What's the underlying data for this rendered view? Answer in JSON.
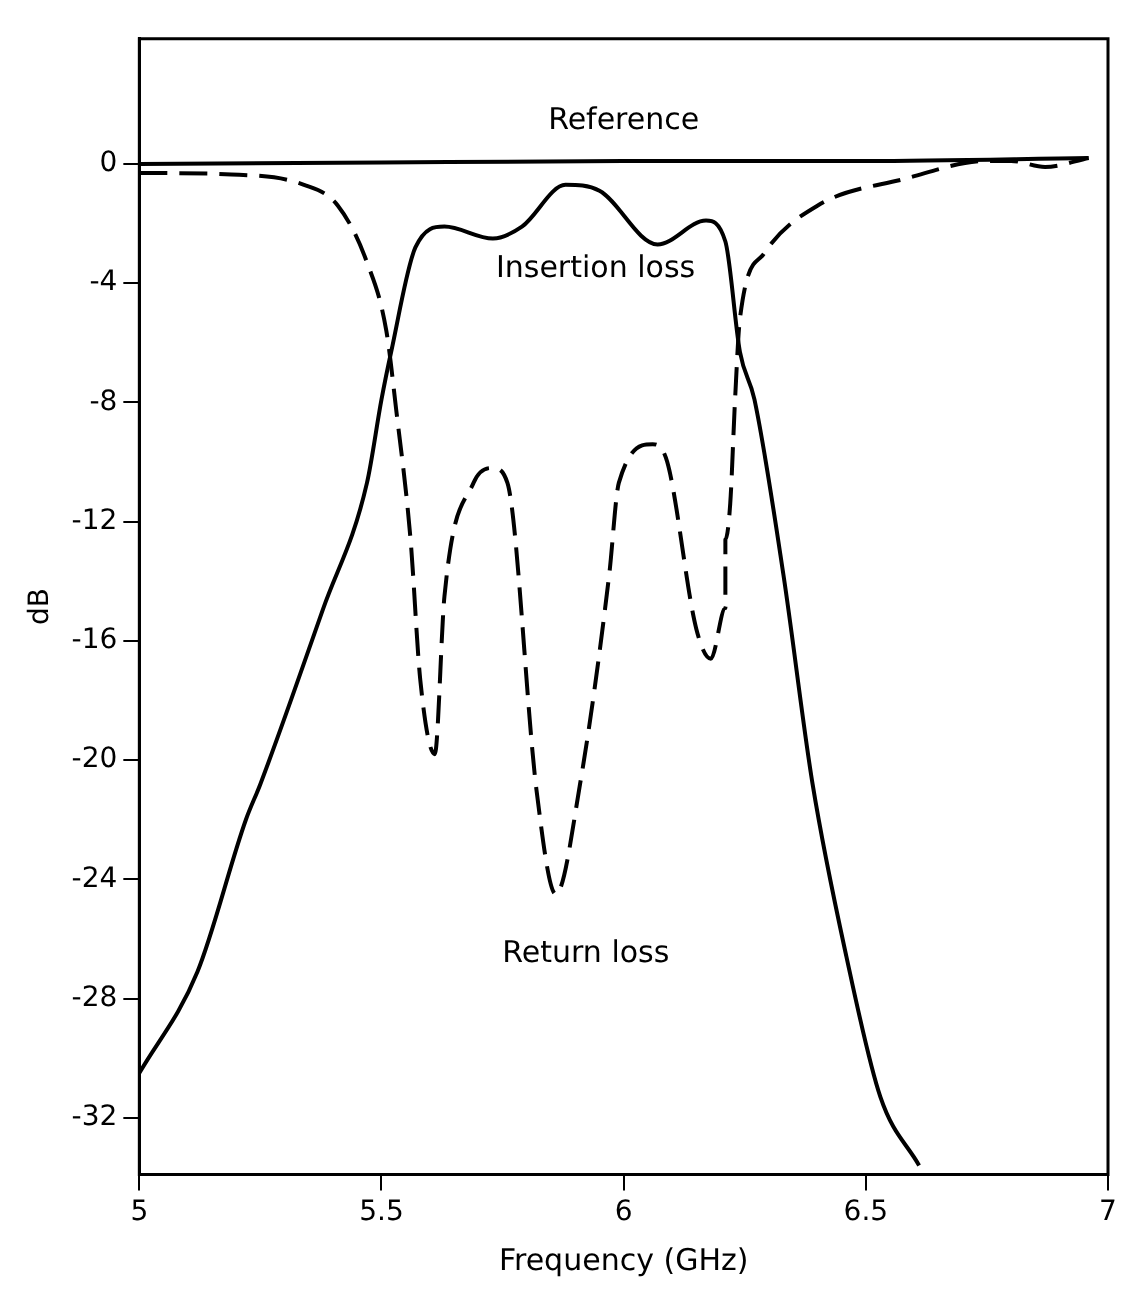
{
  "chart_data": {
    "type": "line",
    "xlabel": "Frequency (GHz)",
    "ylabel": "dB",
    "xlim": [
      5,
      7
    ],
    "xticks": [
      5,
      5.5,
      6,
      6.5,
      7
    ],
    "ylim": [
      -33.9,
      4.2
    ],
    "yticks": [
      0,
      -4,
      -8,
      -12,
      -16,
      -20,
      -24,
      -28,
      -32
    ],
    "grid": false,
    "legend": false,
    "marker": "none",
    "series": [
      {
        "name": "Reference",
        "color": "#000000",
        "line_style": "solid",
        "x": [
          5,
          5.5,
          6,
          6.5,
          6.96
        ],
        "values": [
          0,
          0.05,
          0.1,
          0.1,
          0.2
        ]
      },
      {
        "name": "Insertion loss",
        "color": "#000000",
        "line_style": "solid",
        "x": [
          5,
          5.12,
          5.22,
          5.25,
          5.38,
          5.47,
          5.5,
          5.52,
          5.57,
          5.63,
          5.73,
          5.79,
          5.88,
          5.95,
          6.07,
          6.17,
          6.21,
          6.24,
          6.27,
          6.33,
          6.39,
          6.46,
          6.53,
          6.61
        ],
        "values": [
          -30.5,
          -27.1,
          -22,
          -20.8,
          -14.9,
          -10.7,
          -7.9,
          -6.3,
          -2.8,
          -2.1,
          -2.5,
          -2.1,
          -0.7,
          -0.9,
          -2.7,
          -1.9,
          -2.6,
          -6.3,
          -7.9,
          -13.8,
          -20.8,
          -26.6,
          -31.3,
          -33.6
        ]
      },
      {
        "name": "Return loss",
        "color": "#000000",
        "line_style": "dashed",
        "x": [
          5,
          5.19,
          5.34,
          5.41,
          5.47,
          5.51,
          5.53,
          5.56,
          5.58,
          5.61,
          5.63,
          5.69,
          5.73,
          5.76,
          5.82,
          5.86,
          5.91,
          5.97,
          5.99,
          6.06,
          6.09,
          6.15,
          6.18,
          6.21,
          6.21,
          6.22,
          6.23,
          6.24,
          6.29,
          6.4,
          6.58,
          6.75,
          6.8,
          6.87,
          6.96
        ],
        "values": [
          -0.3,
          -0.35,
          -0.7,
          -1.4,
          -3.3,
          -5.6,
          -8.2,
          -12.6,
          -17.3,
          -19.8,
          -14.5,
          -10.7,
          -10.2,
          -10.7,
          -21,
          -24.5,
          -20.8,
          -13.8,
          -10.7,
          -9.4,
          -10,
          -15.6,
          -16.6,
          -14.9,
          -12.6,
          -11.4,
          -7.9,
          -5.2,
          -3,
          -1.4,
          -0.5,
          0.1,
          0.1,
          -0.1,
          0.2
        ]
      }
    ]
  }
}
